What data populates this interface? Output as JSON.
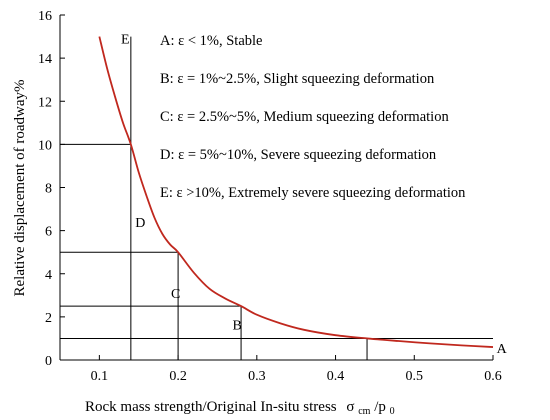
{
  "chart_data": {
    "type": "line",
    "xlabel": "Rock mass strength/Original In-situ stress",
    "xlabel_symbol": "σ",
    "xlabel_symbol_sub": "cm",
    "xlabel_slash": "/p",
    "xlabel_slash_sub": "0",
    "ylabel": "Relative displacement of roadway%",
    "xlim": [
      0.05,
      0.6
    ],
    "ylim": [
      0,
      16
    ],
    "xticks": [
      0.1,
      0.2,
      0.3,
      0.4,
      0.5,
      0.6
    ],
    "xtick_labels": [
      "0.1",
      "0.2",
      "0.3",
      "0.4",
      "0.5",
      "0.6"
    ],
    "yticks": [
      0,
      2,
      4,
      6,
      8,
      10,
      12,
      14,
      16
    ],
    "ytick_labels": [
      "0",
      "2",
      "4",
      "6",
      "8",
      "10",
      "12",
      "14",
      "16"
    ],
    "curve": {
      "color": "#c0281e",
      "x": [
        0.1,
        0.11,
        0.12,
        0.13,
        0.14,
        0.15,
        0.16,
        0.17,
        0.18,
        0.19,
        0.2,
        0.22,
        0.24,
        0.26,
        0.28,
        0.3,
        0.33,
        0.36,
        0.4,
        0.44,
        0.48,
        0.52,
        0.56,
        0.6
      ],
      "y": [
        15.0,
        13.5,
        12.2,
        11.0,
        10.0,
        8.7,
        7.6,
        6.6,
        5.85,
        5.35,
        5.0,
        4.05,
        3.3,
        2.85,
        2.5,
        2.1,
        1.7,
        1.4,
        1.15,
        1.0,
        0.88,
        0.77,
        0.68,
        0.6
      ]
    },
    "reference_lines": {
      "color": "#000000",
      "vertical": [
        {
          "x": 0.14,
          "y_from": 0,
          "y_to": 15.0
        },
        {
          "x": 0.2,
          "y_from": 0,
          "y_to": 5
        },
        {
          "x": 0.28,
          "y_from": 0,
          "y_to": 2.5
        },
        {
          "x": 0.44,
          "y_from": 0,
          "y_to": 1
        }
      ],
      "horizontal": [
        {
          "y": 10,
          "x_from": 0.05,
          "x_to": 0.14
        },
        {
          "y": 5,
          "x_from": 0.05,
          "x_to": 0.2
        },
        {
          "y": 2.5,
          "x_from": 0.05,
          "x_to": 0.28
        },
        {
          "y": 1,
          "x_from": 0.05,
          "x_to": 0.6
        }
      ]
    },
    "region_labels": [
      {
        "text": "E",
        "x": 0.133,
        "y": 14.9
      },
      {
        "text": "D",
        "x": 0.152,
        "y": 6.4
      },
      {
        "text": "C",
        "x": 0.197,
        "y": 3.1
      },
      {
        "text": "B",
        "x": 0.275,
        "y": 1.65
      },
      {
        "text": "A",
        "x": 0.611,
        "y": 0.55
      }
    ],
    "legend": [
      "A: ε < 1%, Stable",
      "B: ε = 1%~2.5%, Slight squeezing deformation",
      "C: ε = 2.5%~5%, Medium squeezing deformation",
      "D: ε = 5%~10%, Severe squeezing deformation",
      "E: ε >10%, Extremely severe squeezing deformation"
    ],
    "legend_placement": "top-right",
    "grid": false
  }
}
